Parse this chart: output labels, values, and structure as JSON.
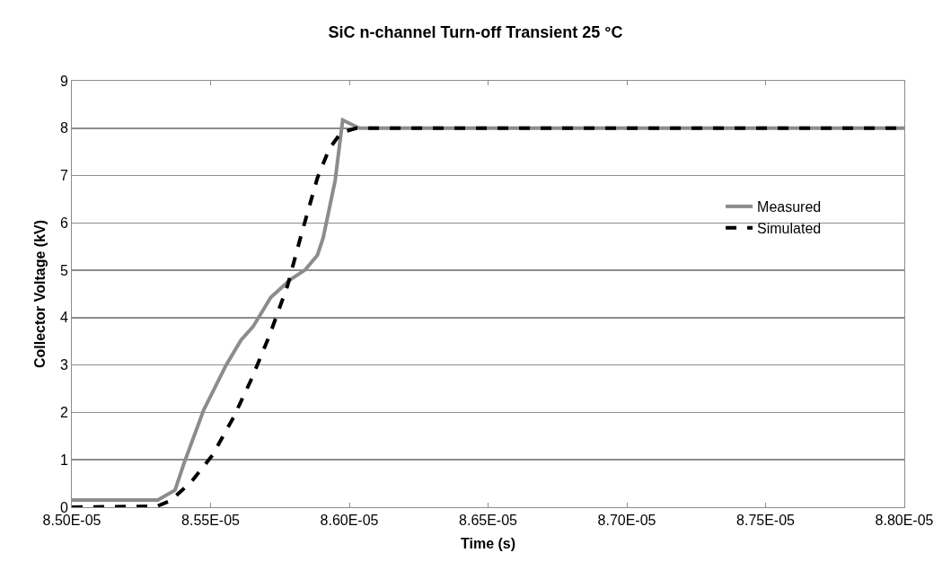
{
  "chart_data": {
    "type": "line",
    "title": "SiC n-channel Turn-off Transient 25 °C",
    "xlabel": "Time (s)",
    "ylabel": "Collector Voltage (kV)",
    "xlim": [
      8.5e-05,
      8.8e-05
    ],
    "xticks": [
      {
        "value": 8.5e-05,
        "label": "8.50E-05"
      },
      {
        "value": 8.55e-05,
        "label": "8.55E-05"
      },
      {
        "value": 8.6e-05,
        "label": "8.60E-05"
      },
      {
        "value": 8.65e-05,
        "label": "8.65E-05"
      },
      {
        "value": 8.7e-05,
        "label": "8.70E-05"
      },
      {
        "value": 8.75e-05,
        "label": "8.75E-05"
      },
      {
        "value": 8.8e-05,
        "label": "8.80E-05"
      }
    ],
    "ylim": [
      0,
      9
    ],
    "yticks": [
      0,
      1,
      2,
      3,
      4,
      5,
      6,
      7,
      8,
      9
    ],
    "grid": "y",
    "legend": "right",
    "marker": "none",
    "series": [
      {
        "name": "Measured",
        "color": "#8c8c8c",
        "line_style": "solid",
        "x": [
          8.5e-05,
          8.531e-05,
          8.5372e-05,
          8.5405e-05,
          8.5475e-05,
          8.5556e-05,
          8.561e-05,
          8.5653e-05,
          8.5717e-05,
          8.5787e-05,
          8.5841e-05,
          8.5885e-05,
          8.5906e-05,
          8.5949e-05,
          8.5976e-05,
          8.6036e-05,
          8.8e-05
        ],
        "values": [
          0.15,
          0.15,
          0.36,
          0.94,
          2.05,
          3.0,
          3.53,
          3.81,
          4.43,
          4.8,
          5.01,
          5.32,
          5.69,
          6.9,
          8.17,
          8.0,
          8.0
        ]
      },
      {
        "name": "Simulated",
        "color": "#000000",
        "line_style": "dashed",
        "x": [
          8.5e-05,
          8.5307e-05,
          8.5356e-05,
          8.5431e-05,
          8.5507e-05,
          8.5583e-05,
          8.5647e-05,
          8.5712e-05,
          8.5777e-05,
          8.5831e-05,
          8.5885e-05,
          8.5928e-05,
          8.5971e-05,
          8.6025e-05,
          8.8e-05
        ],
        "values": [
          0,
          0.02,
          0.14,
          0.54,
          1.1,
          1.9,
          2.7,
          3.62,
          4.67,
          5.84,
          6.95,
          7.57,
          7.91,
          8.0,
          8.0
        ]
      }
    ]
  }
}
